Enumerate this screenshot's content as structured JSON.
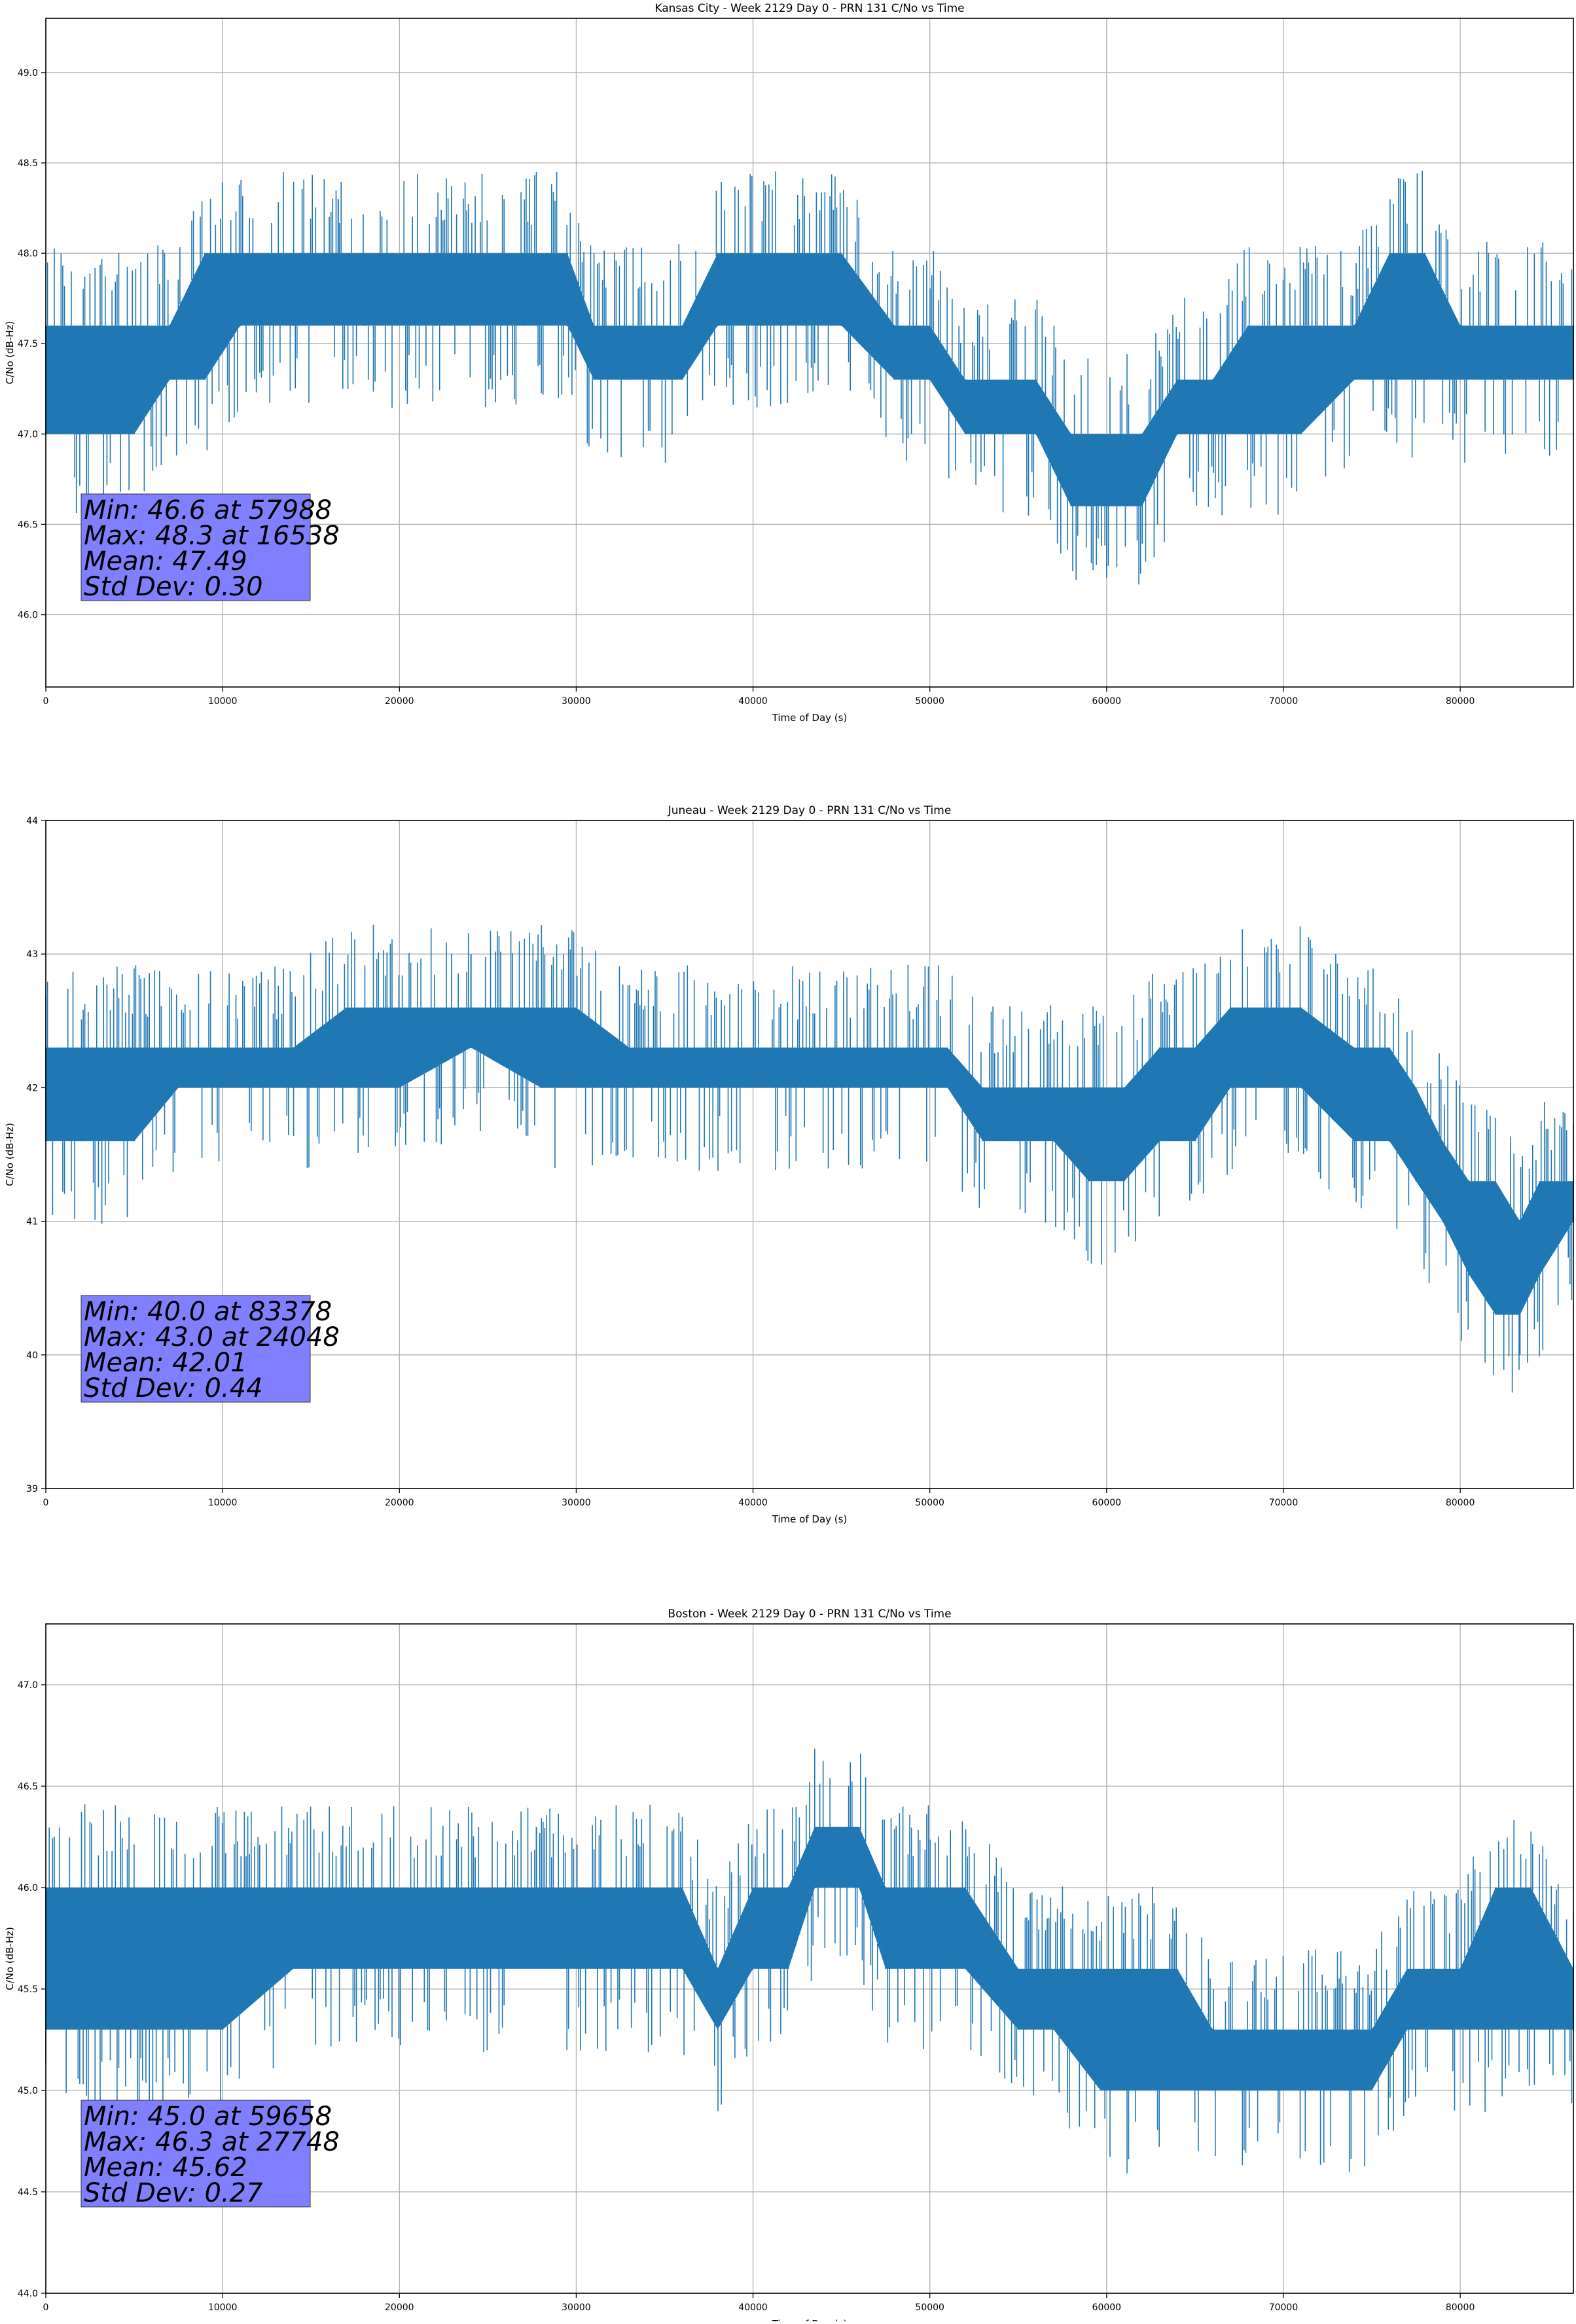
{
  "chart_data": [
    {
      "type": "line",
      "title": "Kansas City - Week 2129 Day 0 - PRN 131 C/No vs Time",
      "xlabel": "Time of Day (s)",
      "ylabel": "C/No (dB-Hz)",
      "xlim": [
        0,
        86400
      ],
      "ylim": [
        45.6,
        49.3
      ],
      "xticks": [
        0,
        10000,
        20000,
        30000,
        40000,
        50000,
        60000,
        70000,
        80000
      ],
      "yticks": [
        46.0,
        46.5,
        47.0,
        47.5,
        48.0,
        48.5,
        49.0
      ],
      "ytick_decimals": 1,
      "grid": true,
      "series_color": "#1f77b4",
      "series": [
        {
          "x": [
            0,
            2000,
            5000,
            7000,
            9000,
            11000,
            14000,
            16538,
            18000,
            22000,
            27000,
            29500,
            31000,
            33000,
            36000,
            38000,
            40500,
            42000,
            45000,
            48000,
            50000,
            52000,
            54000,
            56000,
            57988,
            60000,
            62000,
            64000,
            66000,
            68000,
            71000,
            74000,
            76000,
            78000,
            80000,
            82000,
            84000,
            86400
          ],
          "y": [
            47.3,
            47.3,
            47.3,
            47.5,
            47.6,
            47.8,
            47.8,
            48.3,
            47.8,
            47.8,
            47.8,
            47.8,
            47.6,
            47.5,
            47.5,
            47.8,
            47.9,
            47.8,
            47.8,
            47.6,
            47.4,
            47.1,
            47.1,
            47.1,
            46.6,
            46.8,
            46.8,
            47.1,
            47.1,
            47.2,
            47.3,
            47.4,
            47.6,
            47.6,
            47.4,
            47.4,
            47.4,
            47.4
          ],
          "band_low": [
            47.0,
            47.0,
            47.0,
            47.3,
            47.3,
            47.6,
            47.6,
            47.6,
            47.6,
            47.6,
            47.6,
            47.6,
            47.3,
            47.3,
            47.3,
            47.6,
            47.6,
            47.6,
            47.6,
            47.3,
            47.3,
            47.0,
            47.0,
            47.0,
            46.6,
            46.6,
            46.6,
            47.0,
            47.0,
            47.0,
            47.0,
            47.3,
            47.3,
            47.3,
            47.3,
            47.3,
            47.3,
            47.3
          ],
          "band_high": [
            47.6,
            47.6,
            47.6,
            47.6,
            48.0,
            48.0,
            48.0,
            48.0,
            48.0,
            48.0,
            48.0,
            48.0,
            47.6,
            47.6,
            47.6,
            48.0,
            48.0,
            48.0,
            48.0,
            47.6,
            47.6,
            47.3,
            47.3,
            47.3,
            47.0,
            47.0,
            47.0,
            47.3,
            47.3,
            47.6,
            47.6,
            47.6,
            48.0,
            48.0,
            47.6,
            47.6,
            47.6,
            47.6
          ]
        }
      ],
      "stats_lines": [
        "Min: 46.6 at 57988",
        "Max: 48.3 at 16538",
        "Mean: 47.49",
        "Std Dev: 0.30"
      ]
    },
    {
      "type": "line",
      "title": "Juneau - Week 2129 Day 0 - PRN 131 C/No vs Time",
      "xlabel": "Time of Day (s)",
      "ylabel": "C/No (dB-Hz)",
      "xlim": [
        0,
        86400
      ],
      "ylim": [
        39,
        44
      ],
      "xticks": [
        0,
        10000,
        20000,
        30000,
        40000,
        50000,
        60000,
        70000,
        80000
      ],
      "yticks": [
        39,
        40,
        41,
        42,
        43,
        44
      ],
      "ytick_decimals": 0,
      "grid": true,
      "series_color": "#1f77b4",
      "series": [
        {
          "x": [
            0,
            2000,
            5000,
            7500,
            8000,
            10000,
            12000,
            14000,
            17000,
            20000,
            24048,
            28000,
            30000,
            33000,
            36000,
            38000,
            42000,
            45000,
            48000,
            51000,
            53000,
            55000,
            57000,
            59000,
            61000,
            63000,
            65000,
            67000,
            69000,
            71000,
            74000,
            76000,
            77500,
            79000,
            80500,
            82000,
            83378,
            84500,
            86400
          ],
          "y": [
            42.1,
            42.1,
            42.1,
            42.2,
            42.2,
            42.2,
            42.2,
            42.2,
            42.3,
            42.4,
            43.0,
            42.4,
            42.3,
            42.2,
            42.2,
            42.2,
            42.2,
            42.2,
            42.2,
            42.2,
            41.9,
            41.8,
            41.8,
            41.8,
            41.7,
            41.8,
            42.1,
            42.3,
            42.4,
            42.3,
            42.2,
            42.1,
            41.6,
            41.3,
            41.1,
            40.8,
            40.0,
            40.9,
            41.0
          ],
          "band_low": [
            41.6,
            41.6,
            41.6,
            42.0,
            42.0,
            42.0,
            42.0,
            42.0,
            42.0,
            42.0,
            42.3,
            42.0,
            42.0,
            42.0,
            42.0,
            42.0,
            42.0,
            42.0,
            42.0,
            42.0,
            41.6,
            41.6,
            41.6,
            41.3,
            41.3,
            41.6,
            41.6,
            42.0,
            42.0,
            42.0,
            41.6,
            41.6,
            41.3,
            41.0,
            40.6,
            40.3,
            40.3,
            40.6,
            41.0
          ],
          "band_high": [
            42.3,
            42.3,
            42.3,
            42.3,
            42.3,
            42.3,
            42.3,
            42.3,
            42.6,
            42.6,
            42.6,
            42.6,
            42.6,
            42.3,
            42.3,
            42.3,
            42.3,
            42.3,
            42.3,
            42.3,
            42.0,
            42.0,
            42.0,
            42.0,
            42.0,
            42.3,
            42.3,
            42.6,
            42.6,
            42.6,
            42.3,
            42.3,
            42.0,
            41.6,
            41.3,
            41.3,
            41.0,
            41.3,
            41.3
          ]
        }
      ],
      "stats_lines": [
        "Min: 40.0 at 83378",
        "Max: 43.0 at 24048",
        "Mean: 42.01",
        "Std Dev: 0.44"
      ]
    },
    {
      "type": "line",
      "title": "Boston - Week 2129 Day 0 - PRN 131 C/No vs Time",
      "xlabel": "Time of Day (s)",
      "ylabel": "C/No (dB-Hz)",
      "xlim": [
        0,
        86400
      ],
      "ylim": [
        44.0,
        47.3
      ],
      "xticks": [
        0,
        10000,
        20000,
        30000,
        40000,
        50000,
        60000,
        70000,
        80000
      ],
      "yticks": [
        44.0,
        44.5,
        45.0,
        45.5,
        46.0,
        46.5,
        47.0
      ],
      "ytick_decimals": 1,
      "grid": true,
      "series_color": "#1f77b4",
      "series": [
        {
          "x": [
            0,
            2000,
            4000,
            6000,
            8000,
            10000,
            14000,
            18000,
            22000,
            25000,
            27748,
            30000,
            33000,
            36000,
            38000,
            40000,
            42000,
            43500,
            46000,
            47500,
            50000,
            52000,
            55000,
            57000,
            59658,
            62000,
            64000,
            66000,
            68000,
            70000,
            73000,
            75000,
            77000,
            80000,
            82000,
            84000,
            86400
          ],
          "y": [
            45.6,
            45.7,
            45.8,
            45.8,
            45.8,
            45.8,
            45.8,
            45.8,
            45.8,
            45.8,
            46.3,
            45.8,
            45.8,
            45.8,
            45.6,
            45.8,
            45.8,
            46.1,
            46.1,
            45.8,
            45.8,
            45.8,
            45.6,
            45.5,
            45.0,
            45.4,
            45.4,
            45.3,
            45.2,
            45.2,
            45.2,
            45.3,
            45.4,
            45.5,
            45.5,
            45.5,
            45.5
          ],
          "band_low": [
            45.3,
            45.3,
            45.3,
            45.3,
            45.3,
            45.3,
            45.6,
            45.6,
            45.6,
            45.6,
            45.6,
            45.6,
            45.6,
            45.6,
            45.3,
            45.6,
            45.6,
            46.0,
            46.0,
            45.6,
            45.6,
            45.6,
            45.3,
            45.3,
            45.0,
            45.0,
            45.0,
            45.0,
            45.0,
            45.0,
            45.0,
            45.0,
            45.3,
            45.3,
            45.3,
            45.3,
            45.3
          ],
          "band_high": [
            46.0,
            46.0,
            46.0,
            46.0,
            46.0,
            46.0,
            46.0,
            46.0,
            46.0,
            46.0,
            46.0,
            46.0,
            46.0,
            46.0,
            45.6,
            46.0,
            46.0,
            46.3,
            46.3,
            46.0,
            46.0,
            46.0,
            45.6,
            45.6,
            45.6,
            45.6,
            45.6,
            45.3,
            45.3,
            45.3,
            45.3,
            45.3,
            45.6,
            45.6,
            46.0,
            46.0,
            45.6
          ]
        }
      ],
      "stats_lines": [
        "Min: 45.0 at 59658",
        "Max: 46.3 at 27748",
        "Mean: 45.62",
        "Std Dev: 0.27"
      ]
    }
  ]
}
